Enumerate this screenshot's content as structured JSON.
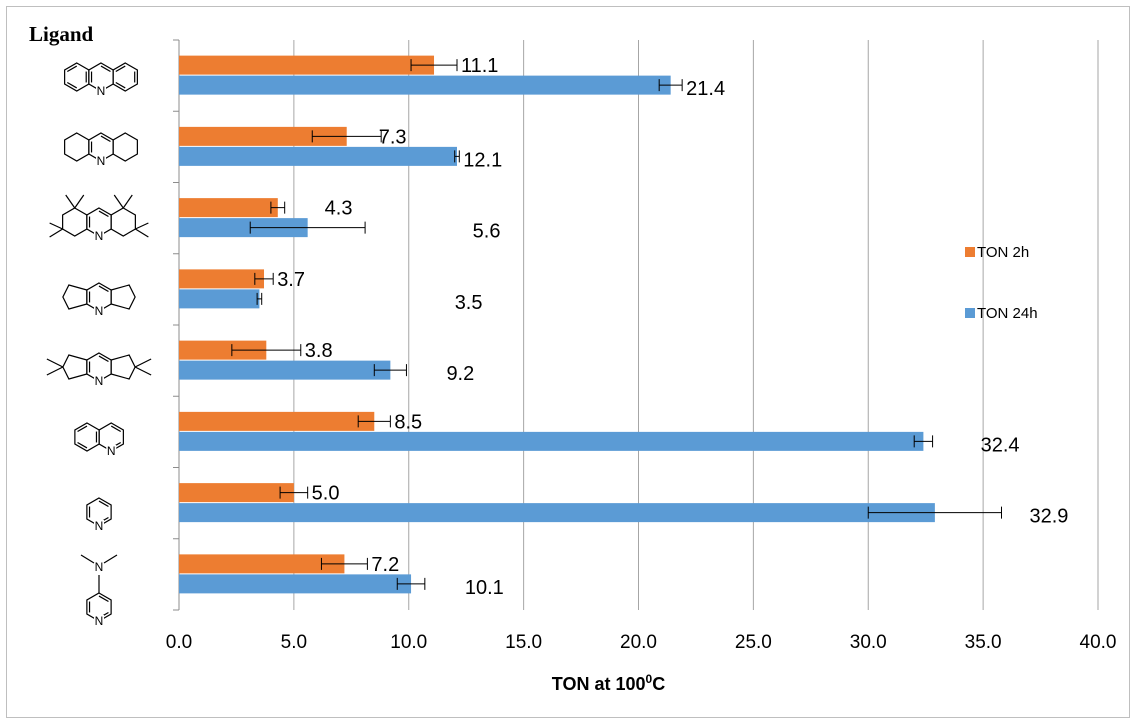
{
  "chart_data": {
    "type": "bar",
    "orientation": "horizontal",
    "ligand_header": "Ligand",
    "categories": [
      "acridine",
      "octahydroacridine",
      "octamethyl-octahydroacridine",
      "dicyclopentapyridine",
      "tetramethyl-dicyclopentapyridine",
      "quinoline",
      "pyridine",
      "DMAP"
    ],
    "series": [
      {
        "name": "TON 2h",
        "color": "#ED7D31",
        "values": [
          11.1,
          7.3,
          4.3,
          3.7,
          3.8,
          8.5,
          5.0,
          7.2
        ],
        "labels": [
          "11.1",
          "7.3",
          "4.3",
          "3.7",
          "3.8",
          "8.5",
          "5.0",
          "7.2"
        ],
        "error": [
          1.0,
          1.5,
          0.3,
          0.4,
          1.5,
          0.7,
          0.6,
          1.0
        ]
      },
      {
        "name": "TON 24h",
        "color": "#5B9BD5",
        "values": [
          21.4,
          12.1,
          5.6,
          3.5,
          9.2,
          32.4,
          32.9,
          10.1
        ],
        "labels": [
          "21.4",
          "12.1",
          "5.6",
          "3.5",
          "9.2",
          "32.4",
          "32.9",
          "10.1"
        ],
        "error": [
          0.5,
          0.1,
          2.5,
          0.1,
          0.7,
          0.4,
          2.9,
          0.6
        ]
      }
    ],
    "xlim": [
      0,
      40
    ],
    "xticks": [
      "0.0",
      "5.0",
      "10.0",
      "15.0",
      "20.0",
      "25.0",
      "30.0",
      "35.0",
      "40.0"
    ],
    "xlabel_main": "TON at 100",
    "xlabel_sup": "0",
    "xlabel_end": "C",
    "grid": "vertical",
    "legend_position": "right"
  }
}
